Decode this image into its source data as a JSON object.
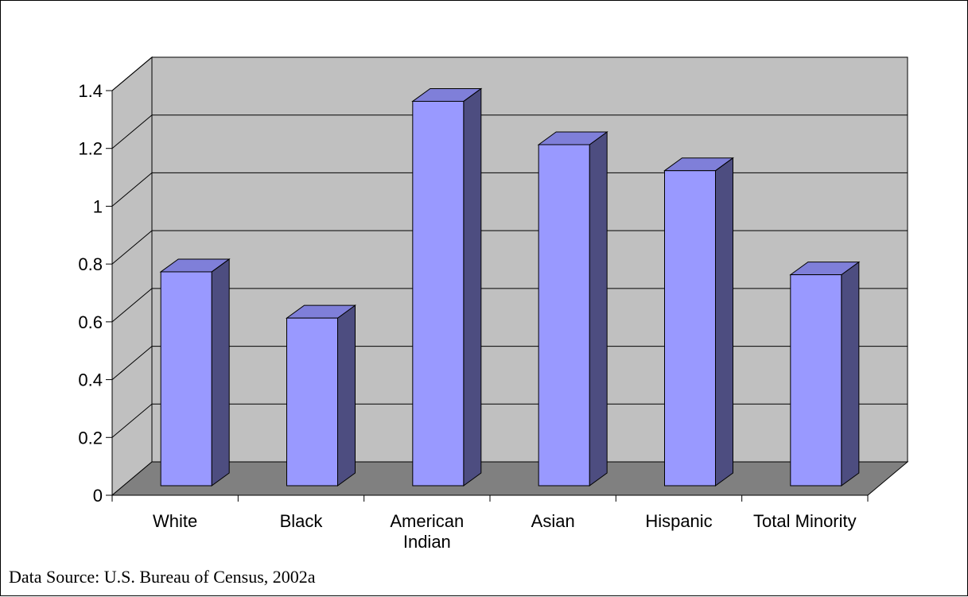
{
  "chart_data": {
    "type": "bar",
    "title": "",
    "xlabel": "",
    "ylabel": "",
    "categories": [
      [
        "White"
      ],
      [
        "Black"
      ],
      [
        "American",
        "Indian"
      ],
      [
        "Asian"
      ],
      [
        "Hispanic"
      ],
      [
        "Total Minority"
      ]
    ],
    "values": [
      0.74,
      0.58,
      1.33,
      1.18,
      1.09,
      0.73
    ],
    "ylim": [
      0,
      1.4
    ],
    "yticks": [
      "0",
      "0.2",
      "0.4",
      "0.6",
      "0.8",
      "1",
      "1.2",
      "1.4"
    ],
    "grid": true,
    "style": "3d-column",
    "colors": {
      "bar_front": "#9999ff",
      "bar_side": "#4d4d80",
      "bar_top": "#7f7fd9",
      "wall": "#c0c0c0",
      "floor": "#808080"
    }
  },
  "footer": {
    "source": "Data Source: U.S. Bureau of Census, 2002a"
  }
}
